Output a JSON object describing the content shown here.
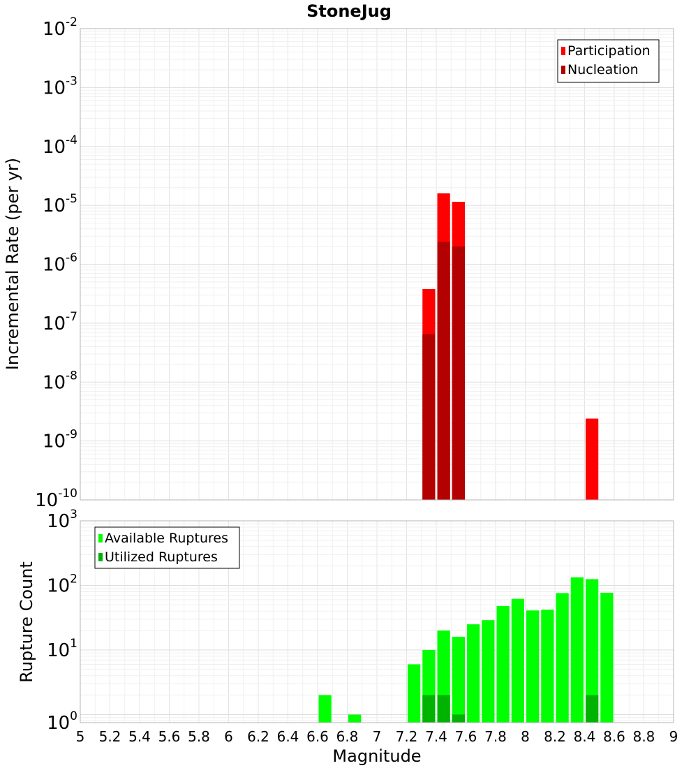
{
  "chart_data": [
    {
      "type": "bar",
      "title": "StoneJug",
      "ylabel": "Incremental Rate (per yr)",
      "xlabel": "",
      "xlim": [
        5,
        9
      ],
      "ylim": [
        1e-10,
        0.01
      ],
      "yscale": "log",
      "bin_width": 0.1,
      "grid": true,
      "legend_position": "top-right",
      "y_ticks": [
        {
          "base": "10",
          "exp": "-10"
        },
        {
          "base": "10",
          "exp": "-9"
        },
        {
          "base": "10",
          "exp": "-8"
        },
        {
          "base": "10",
          "exp": "-7"
        },
        {
          "base": "10",
          "exp": "-6"
        },
        {
          "base": "10",
          "exp": "-5"
        },
        {
          "base": "10",
          "exp": "-4"
        },
        {
          "base": "10",
          "exp": "-3"
        },
        {
          "base": "10",
          "exp": "-2"
        }
      ],
      "series": [
        {
          "name": "Participation",
          "color": "#ff0000",
          "x": [
            7.35,
            7.45,
            7.55,
            8.45
          ],
          "values": [
            3.8e-07,
            1.6e-05,
            1.15e-05,
            2.4e-09
          ]
        },
        {
          "name": "Nucleation",
          "color": "#b30000",
          "x": [
            7.35,
            7.45,
            7.55
          ],
          "values": [
            6.5e-08,
            2.4e-06,
            2e-06
          ]
        }
      ]
    },
    {
      "type": "bar",
      "title": "",
      "ylabel": "Rupture Count",
      "xlabel": "Magnitude",
      "xlim": [
        5,
        9
      ],
      "ylim": [
        0.75,
        1000
      ],
      "yscale": "log",
      "bin_width": 0.1,
      "grid": true,
      "legend_position": "top-left",
      "x_ticks": [
        "5",
        "5.2",
        "5.4",
        "5.6",
        "5.8",
        "6",
        "6.2",
        "6.4",
        "6.6",
        "6.8",
        "7",
        "7.2",
        "7.4",
        "7.6",
        "7.8",
        "8",
        "8.2",
        "8.4",
        "8.6",
        "8.8",
        "9"
      ],
      "y_ticks": [
        {
          "base": "10",
          "exp": "0"
        },
        {
          "base": "10",
          "exp": "1"
        },
        {
          "base": "10",
          "exp": "2"
        },
        {
          "base": "10",
          "exp": "3"
        }
      ],
      "series": [
        {
          "name": "Available Ruptures",
          "color": "#00ff00",
          "x": [
            6.65,
            6.85,
            7.25,
            7.35,
            7.45,
            7.55,
            7.65,
            7.75,
            7.85,
            7.95,
            8.05,
            8.15,
            8.25,
            8.35,
            8.45,
            8.55
          ],
          "values": [
            2,
            1,
            6,
            10,
            20,
            16,
            25,
            29,
            48,
            62,
            41,
            42,
            76,
            133,
            125,
            77
          ]
        },
        {
          "name": "Utilized Ruptures",
          "color": "#00b300",
          "x": [
            7.35,
            7.45,
            7.55,
            8.45
          ],
          "values": [
            2,
            2,
            1,
            2
          ]
        }
      ]
    }
  ]
}
